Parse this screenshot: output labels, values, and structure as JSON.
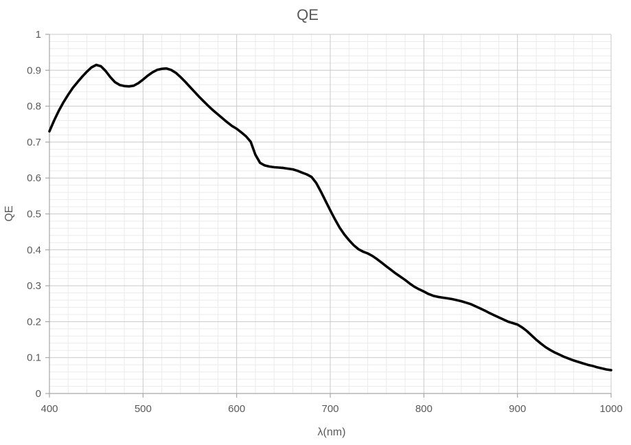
{
  "chart_data": {
    "type": "line",
    "title": "QE",
    "xlabel": "λ(nm)",
    "ylabel": "QE",
    "xlim": [
      400,
      1000
    ],
    "ylim": [
      0,
      1
    ],
    "x_major_step": 100,
    "x_minor_step": 20,
    "y_major_step": 0.1,
    "y_minor_step": 0.02,
    "x_tick_labels": [
      "400",
      "500",
      "600",
      "700",
      "800",
      "900",
      "1000"
    ],
    "y_tick_labels": [
      "0",
      "0.1",
      "0.2",
      "0.3",
      "0.4",
      "0.5",
      "0.6",
      "0.7",
      "0.8",
      "0.9",
      "1"
    ],
    "grid": "major+minor",
    "legend": "none",
    "colors": {
      "line": "#000000",
      "text": "#595959",
      "major_grid": "#c9c9c9",
      "minor_grid": "#ebebeb",
      "axis": "#a6a6a6",
      "background": "#ffffff"
    },
    "series": [
      {
        "name": "QE",
        "points": [
          [
            400,
            0.73
          ],
          [
            405,
            0.76
          ],
          [
            410,
            0.787
          ],
          [
            415,
            0.811
          ],
          [
            420,
            0.832
          ],
          [
            425,
            0.851
          ],
          [
            430,
            0.867
          ],
          [
            435,
            0.882
          ],
          [
            440,
            0.896
          ],
          [
            445,
            0.908
          ],
          [
            450,
            0.915
          ],
          [
            455,
            0.911
          ],
          [
            460,
            0.898
          ],
          [
            465,
            0.881
          ],
          [
            470,
            0.867
          ],
          [
            475,
            0.859
          ],
          [
            480,
            0.856
          ],
          [
            485,
            0.855
          ],
          [
            490,
            0.857
          ],
          [
            495,
            0.864
          ],
          [
            500,
            0.874
          ],
          [
            505,
            0.885
          ],
          [
            510,
            0.894
          ],
          [
            515,
            0.901
          ],
          [
            520,
            0.904
          ],
          [
            525,
            0.905
          ],
          [
            530,
            0.901
          ],
          [
            535,
            0.893
          ],
          [
            540,
            0.881
          ],
          [
            545,
            0.868
          ],
          [
            550,
            0.854
          ],
          [
            555,
            0.84
          ],
          [
            560,
            0.826
          ],
          [
            565,
            0.813
          ],
          [
            570,
            0.8
          ],
          [
            575,
            0.788
          ],
          [
            580,
            0.777
          ],
          [
            585,
            0.766
          ],
          [
            590,
            0.755
          ],
          [
            595,
            0.745
          ],
          [
            600,
            0.737
          ],
          [
            605,
            0.727
          ],
          [
            610,
            0.716
          ],
          [
            615,
            0.701
          ],
          [
            620,
            0.665
          ],
          [
            625,
            0.642
          ],
          [
            630,
            0.635
          ],
          [
            635,
            0.632
          ],
          [
            640,
            0.63
          ],
          [
            645,
            0.629
          ],
          [
            650,
            0.628
          ],
          [
            655,
            0.626
          ],
          [
            660,
            0.624
          ],
          [
            665,
            0.62
          ],
          [
            670,
            0.615
          ],
          [
            675,
            0.61
          ],
          [
            680,
            0.603
          ],
          [
            685,
            0.586
          ],
          [
            690,
            0.562
          ],
          [
            695,
            0.536
          ],
          [
            700,
            0.51
          ],
          [
            705,
            0.485
          ],
          [
            710,
            0.462
          ],
          [
            715,
            0.443
          ],
          [
            720,
            0.427
          ],
          [
            725,
            0.413
          ],
          [
            730,
            0.402
          ],
          [
            735,
            0.395
          ],
          [
            740,
            0.39
          ],
          [
            745,
            0.383
          ],
          [
            750,
            0.374
          ],
          [
            755,
            0.364
          ],
          [
            760,
            0.354
          ],
          [
            765,
            0.344
          ],
          [
            770,
            0.334
          ],
          [
            775,
            0.325
          ],
          [
            780,
            0.316
          ],
          [
            785,
            0.306
          ],
          [
            790,
            0.297
          ],
          [
            795,
            0.29
          ],
          [
            800,
            0.284
          ],
          [
            805,
            0.277
          ],
          [
            810,
            0.272
          ],
          [
            815,
            0.269
          ],
          [
            820,
            0.267
          ],
          [
            825,
            0.265
          ],
          [
            830,
            0.263
          ],
          [
            835,
            0.26
          ],
          [
            840,
            0.257
          ],
          [
            845,
            0.253
          ],
          [
            850,
            0.249
          ],
          [
            855,
            0.243
          ],
          [
            860,
            0.237
          ],
          [
            865,
            0.231
          ],
          [
            870,
            0.224
          ],
          [
            875,
            0.218
          ],
          [
            880,
            0.212
          ],
          [
            885,
            0.206
          ],
          [
            890,
            0.2
          ],
          [
            895,
            0.196
          ],
          [
            900,
            0.192
          ],
          [
            905,
            0.184
          ],
          [
            910,
            0.174
          ],
          [
            915,
            0.162
          ],
          [
            920,
            0.15
          ],
          [
            925,
            0.139
          ],
          [
            930,
            0.129
          ],
          [
            935,
            0.121
          ],
          [
            940,
            0.114
          ],
          [
            945,
            0.108
          ],
          [
            950,
            0.102
          ],
          [
            955,
            0.097
          ],
          [
            960,
            0.092
          ],
          [
            965,
            0.088
          ],
          [
            970,
            0.084
          ],
          [
            975,
            0.08
          ],
          [
            980,
            0.077
          ],
          [
            985,
            0.073
          ],
          [
            990,
            0.07
          ],
          [
            995,
            0.067
          ],
          [
            1000,
            0.065
          ]
        ]
      }
    ]
  }
}
